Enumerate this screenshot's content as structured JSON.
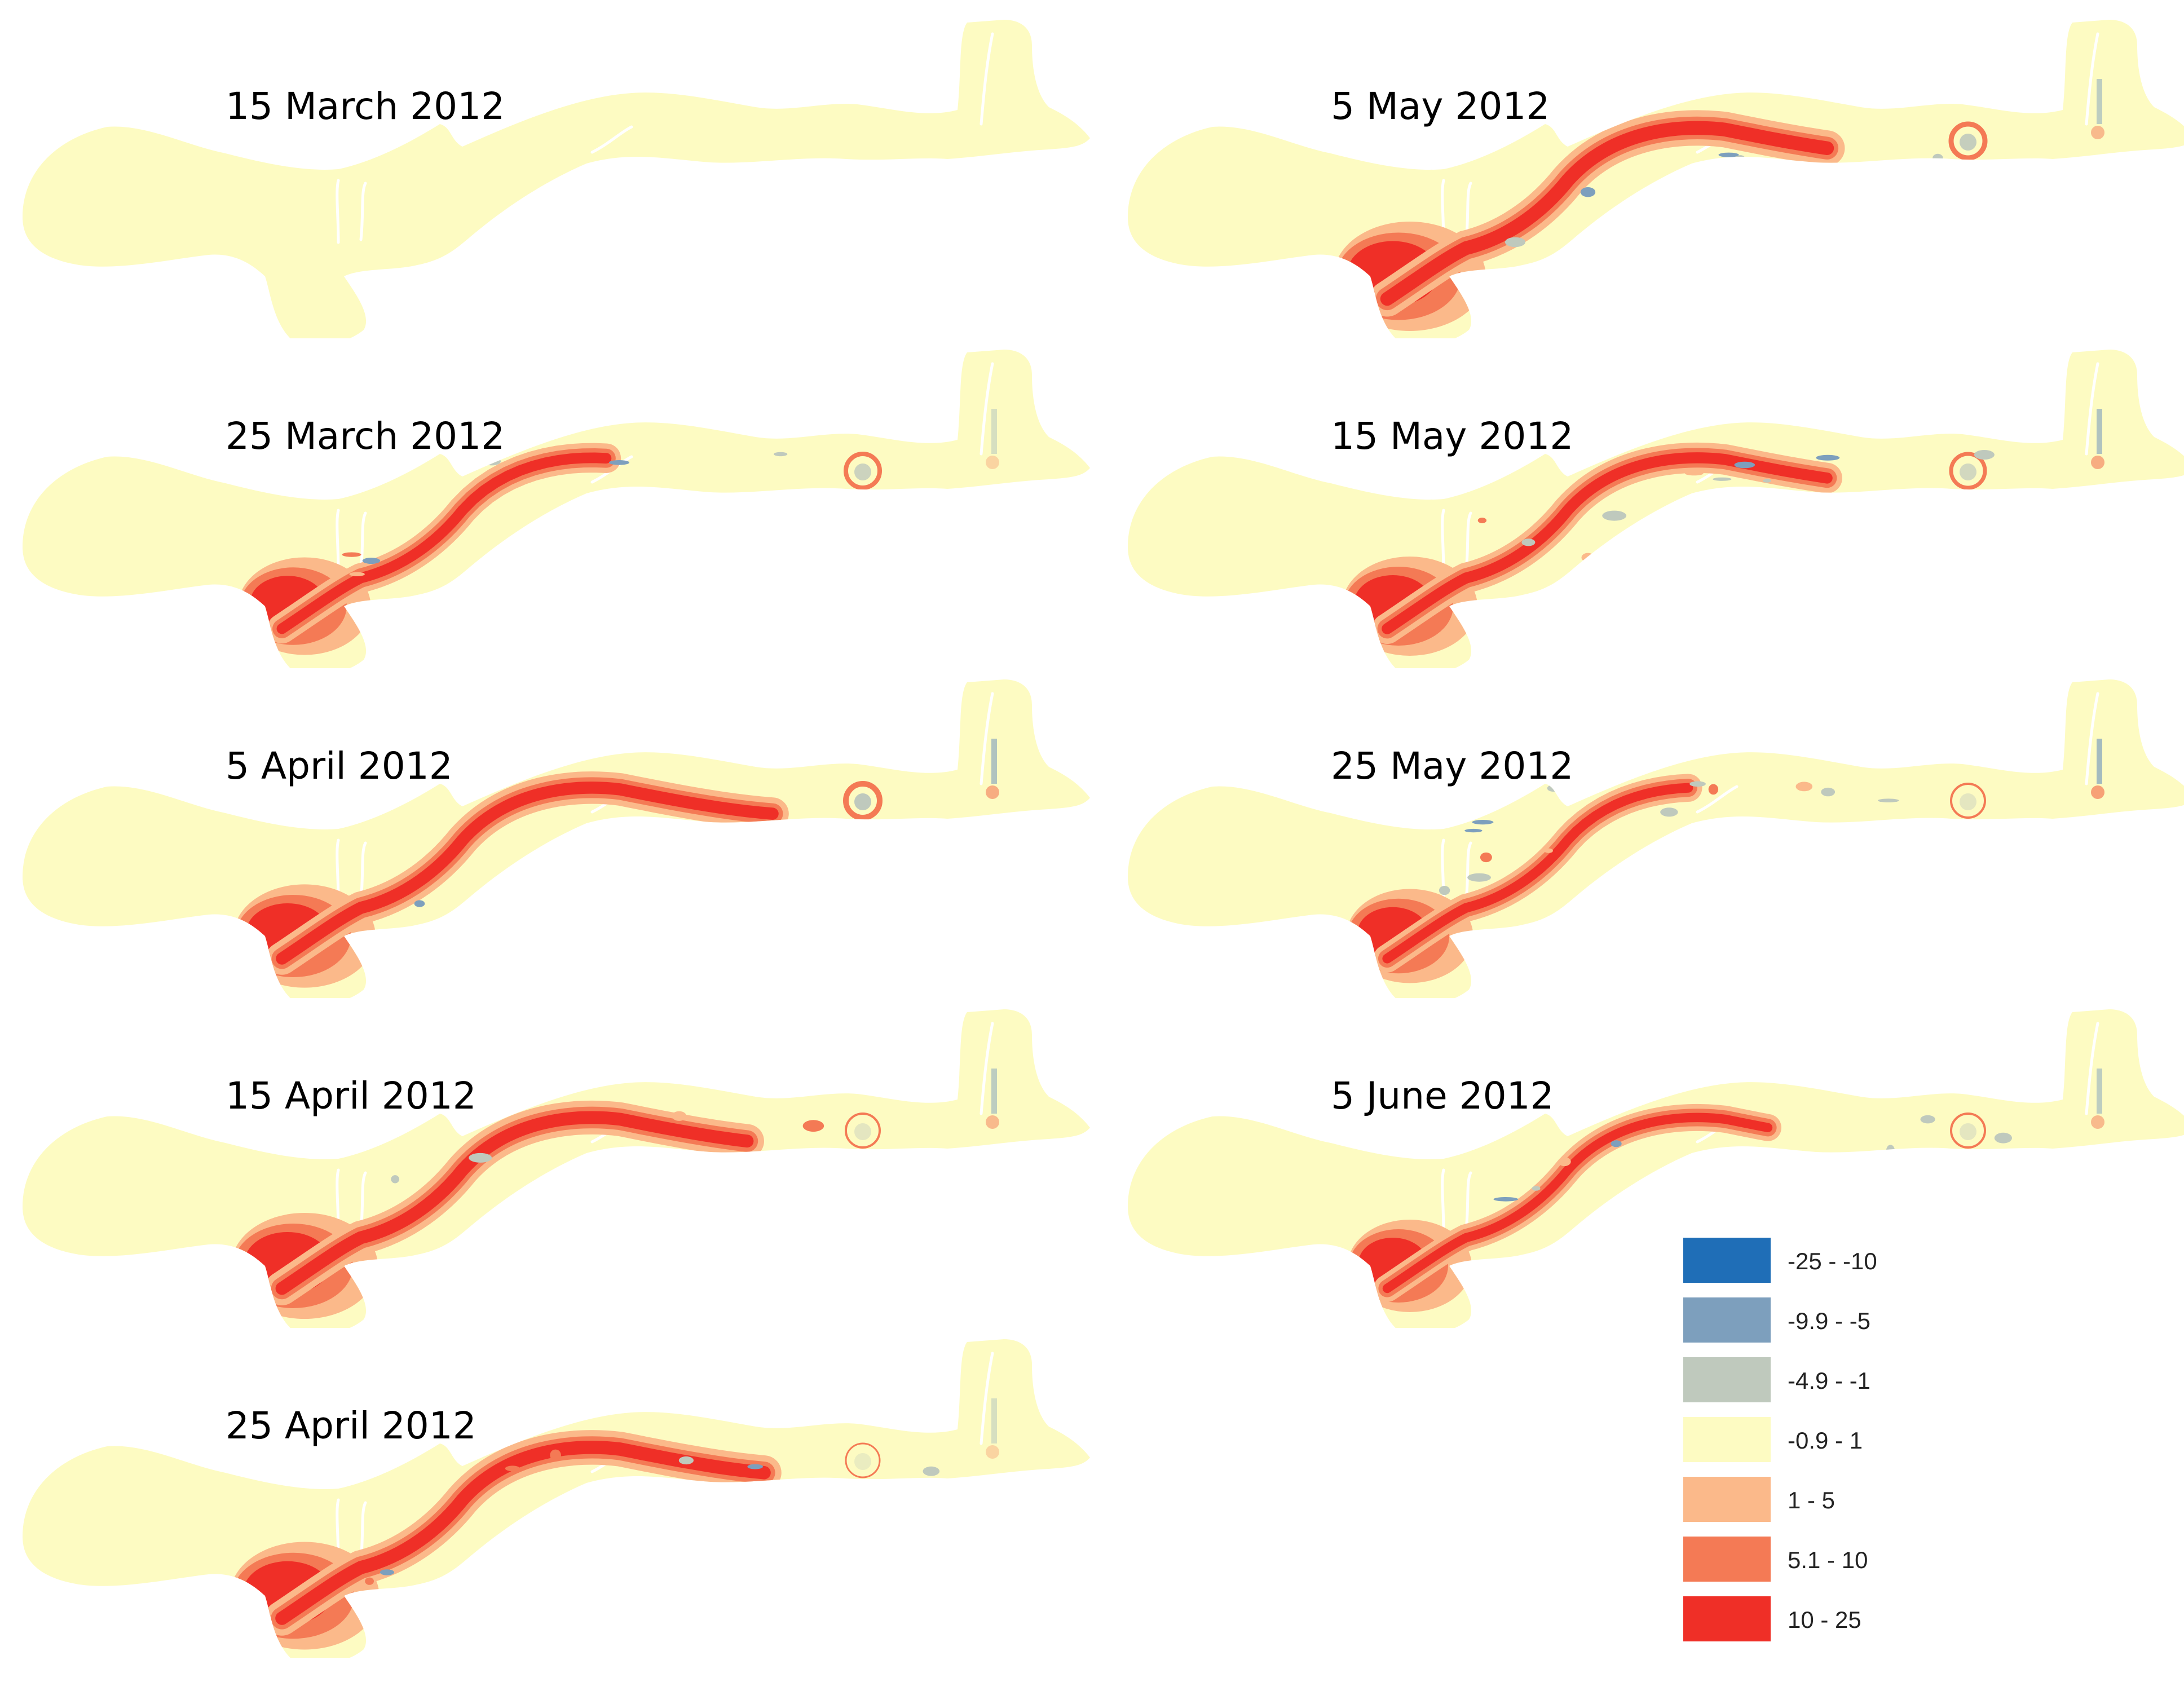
{
  "panels": [
    {
      "id": "p1",
      "title": "15 March 2012",
      "coverage": 0.0,
      "tail": 0.0,
      "ebb_ring": 0.0,
      "north_patch": 0.0,
      "noise": 0.0
    },
    {
      "id": "p2",
      "title": "25 March 2012",
      "coverage": 0.55,
      "tail": 0.58,
      "ebb_ring": 0.8,
      "north_patch": 0.3,
      "noise": 0.5
    },
    {
      "id": "p3",
      "title": "5 April 2012",
      "coverage": 0.72,
      "tail": 0.78,
      "ebb_ring": 1.0,
      "north_patch": 0.6,
      "noise": 0.3
    },
    {
      "id": "p4",
      "title": "15 April 2012",
      "coverage": 0.8,
      "tail": 0.75,
      "ebb_ring": 0.4,
      "north_patch": 0.5,
      "noise": 0.3
    },
    {
      "id": "p5",
      "title": "25 April 2012",
      "coverage": 0.85,
      "tail": 0.77,
      "ebb_ring": 0.3,
      "north_patch": 0.3,
      "noise": 0.3
    },
    {
      "id": "p6",
      "title": "5 May 2012",
      "coverage": 0.9,
      "tail": 0.72,
      "ebb_ring": 0.9,
      "north_patch": 0.5,
      "noise": 0.6
    },
    {
      "id": "p7",
      "title": "15 May 2012",
      "coverage": 0.6,
      "tail": 0.72,
      "ebb_ring": 0.7,
      "north_patch": 0.6,
      "noise": 0.8
    },
    {
      "id": "p8",
      "title": "25 May 2012",
      "coverage": 0.45,
      "tail": 0.55,
      "ebb_ring": 0.4,
      "north_patch": 0.7,
      "noise": 0.9
    },
    {
      "id": "p9",
      "title": "5 June 2012",
      "coverage": 0.4,
      "tail": 0.65,
      "ebb_ring": 0.4,
      "north_patch": 0.5,
      "noise": 0.9
    }
  ],
  "legend": {
    "items": [
      {
        "label": "-25 - -10",
        "color": "#1f6eb7"
      },
      {
        "label": "-9.9 - -5",
        "color": "#7d9fbd"
      },
      {
        "label": "-4.9 - -1",
        "color": "#bfc9bd"
      },
      {
        "label": "-0.9 - 1",
        "color": "#fdfbc2"
      },
      {
        "label": "1 - 5",
        "color": "#fbb98a"
      },
      {
        "label": "5.1 - 10",
        "color": "#f47a55"
      },
      {
        "label": "10 - 25",
        "color": "#ef2f27"
      }
    ]
  },
  "colors": {
    "land": "#fdfbc2",
    "background": "#ffffff"
  }
}
